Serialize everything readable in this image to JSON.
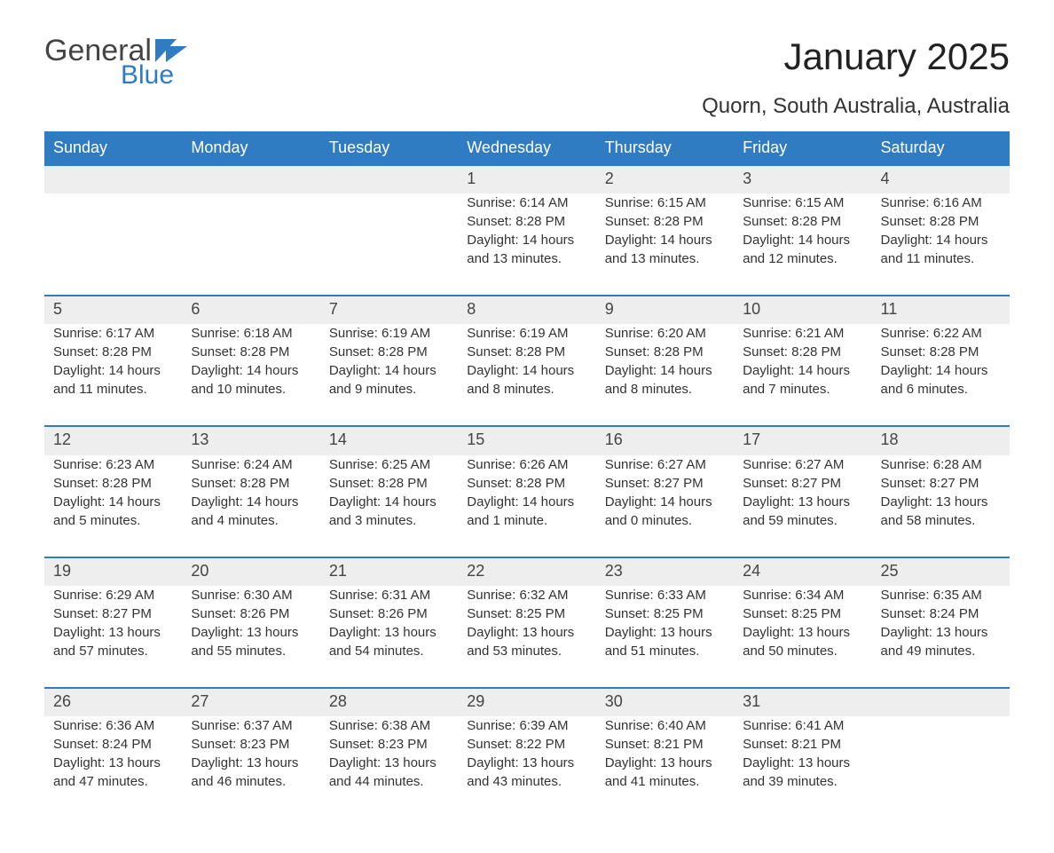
{
  "colors": {
    "header_bg": "#2f7cc2",
    "header_text": "#ffffff",
    "daynum_bg": "#eeeeee",
    "row_divider": "#2f7cc2",
    "accent": "#2f7cc2",
    "logo_gray": "#555555"
  },
  "typography": {
    "title_fontsize": 42,
    "location_fontsize": 24,
    "weekday_fontsize": 18,
    "daynum_fontsize": 18,
    "cell_fontsize": 15,
    "font_family": "Arial, Helvetica, sans-serif"
  },
  "logo": {
    "line1": "General",
    "line2": "Blue"
  },
  "title": "January 2025",
  "location": "Quorn, South Australia, Australia",
  "weekdays": [
    "Sunday",
    "Monday",
    "Tuesday",
    "Wednesday",
    "Thursday",
    "Friday",
    "Saturday"
  ],
  "labels": {
    "sunrise": "Sunrise:",
    "sunset": "Sunset:",
    "daylight": "Daylight:"
  },
  "weeks": [
    [
      null,
      null,
      null,
      {
        "day": "1",
        "sunrise": "6:14 AM",
        "sunset": "8:28 PM",
        "daylight": "14 hours and 13 minutes."
      },
      {
        "day": "2",
        "sunrise": "6:15 AM",
        "sunset": "8:28 PM",
        "daylight": "14 hours and 13 minutes."
      },
      {
        "day": "3",
        "sunrise": "6:15 AM",
        "sunset": "8:28 PM",
        "daylight": "14 hours and 12 minutes."
      },
      {
        "day": "4",
        "sunrise": "6:16 AM",
        "sunset": "8:28 PM",
        "daylight": "14 hours and 11 minutes."
      }
    ],
    [
      {
        "day": "5",
        "sunrise": "6:17 AM",
        "sunset": "8:28 PM",
        "daylight": "14 hours and 11 minutes."
      },
      {
        "day": "6",
        "sunrise": "6:18 AM",
        "sunset": "8:28 PM",
        "daylight": "14 hours and 10 minutes."
      },
      {
        "day": "7",
        "sunrise": "6:19 AM",
        "sunset": "8:28 PM",
        "daylight": "14 hours and 9 minutes."
      },
      {
        "day": "8",
        "sunrise": "6:19 AM",
        "sunset": "8:28 PM",
        "daylight": "14 hours and 8 minutes."
      },
      {
        "day": "9",
        "sunrise": "6:20 AM",
        "sunset": "8:28 PM",
        "daylight": "14 hours and 8 minutes."
      },
      {
        "day": "10",
        "sunrise": "6:21 AM",
        "sunset": "8:28 PM",
        "daylight": "14 hours and 7 minutes."
      },
      {
        "day": "11",
        "sunrise": "6:22 AM",
        "sunset": "8:28 PM",
        "daylight": "14 hours and 6 minutes."
      }
    ],
    [
      {
        "day": "12",
        "sunrise": "6:23 AM",
        "sunset": "8:28 PM",
        "daylight": "14 hours and 5 minutes."
      },
      {
        "day": "13",
        "sunrise": "6:24 AM",
        "sunset": "8:28 PM",
        "daylight": "14 hours and 4 minutes."
      },
      {
        "day": "14",
        "sunrise": "6:25 AM",
        "sunset": "8:28 PM",
        "daylight": "14 hours and 3 minutes."
      },
      {
        "day": "15",
        "sunrise": "6:26 AM",
        "sunset": "8:28 PM",
        "daylight": "14 hours and 1 minute."
      },
      {
        "day": "16",
        "sunrise": "6:27 AM",
        "sunset": "8:27 PM",
        "daylight": "14 hours and 0 minutes."
      },
      {
        "day": "17",
        "sunrise": "6:27 AM",
        "sunset": "8:27 PM",
        "daylight": "13 hours and 59 minutes."
      },
      {
        "day": "18",
        "sunrise": "6:28 AM",
        "sunset": "8:27 PM",
        "daylight": "13 hours and 58 minutes."
      }
    ],
    [
      {
        "day": "19",
        "sunrise": "6:29 AM",
        "sunset": "8:27 PM",
        "daylight": "13 hours and 57 minutes."
      },
      {
        "day": "20",
        "sunrise": "6:30 AM",
        "sunset": "8:26 PM",
        "daylight": "13 hours and 55 minutes."
      },
      {
        "day": "21",
        "sunrise": "6:31 AM",
        "sunset": "8:26 PM",
        "daylight": "13 hours and 54 minutes."
      },
      {
        "day": "22",
        "sunrise": "6:32 AM",
        "sunset": "8:25 PM",
        "daylight": "13 hours and 53 minutes."
      },
      {
        "day": "23",
        "sunrise": "6:33 AM",
        "sunset": "8:25 PM",
        "daylight": "13 hours and 51 minutes."
      },
      {
        "day": "24",
        "sunrise": "6:34 AM",
        "sunset": "8:25 PM",
        "daylight": "13 hours and 50 minutes."
      },
      {
        "day": "25",
        "sunrise": "6:35 AM",
        "sunset": "8:24 PM",
        "daylight": "13 hours and 49 minutes."
      }
    ],
    [
      {
        "day": "26",
        "sunrise": "6:36 AM",
        "sunset": "8:24 PM",
        "daylight": "13 hours and 47 minutes."
      },
      {
        "day": "27",
        "sunrise": "6:37 AM",
        "sunset": "8:23 PM",
        "daylight": "13 hours and 46 minutes."
      },
      {
        "day": "28",
        "sunrise": "6:38 AM",
        "sunset": "8:23 PM",
        "daylight": "13 hours and 44 minutes."
      },
      {
        "day": "29",
        "sunrise": "6:39 AM",
        "sunset": "8:22 PM",
        "daylight": "13 hours and 43 minutes."
      },
      {
        "day": "30",
        "sunrise": "6:40 AM",
        "sunset": "8:21 PM",
        "daylight": "13 hours and 41 minutes."
      },
      {
        "day": "31",
        "sunrise": "6:41 AM",
        "sunset": "8:21 PM",
        "daylight": "13 hours and 39 minutes."
      },
      null
    ]
  ]
}
